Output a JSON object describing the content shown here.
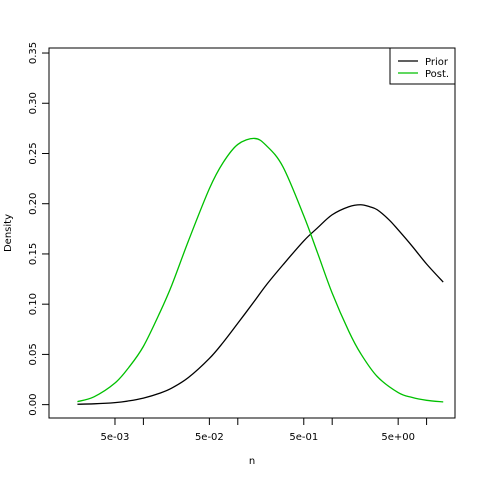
{
  "chart_data": {
    "type": "line",
    "title": "",
    "xlabel": "n",
    "ylabel": "Density",
    "x_scale": "log10",
    "x_range": [
      0.001,
      20
    ],
    "ylim": [
      0,
      0.35
    ],
    "x_ticks": [
      0.005,
      0.05,
      0.5,
      5
    ],
    "x_tick_labels": [
      "5e-03",
      "5e-02",
      "5e-01",
      "5e+00"
    ],
    "x_minor_ticks": [
      0.01,
      0.1,
      1,
      10
    ],
    "y_ticks": [
      0,
      0.05,
      0.1,
      0.15,
      0.2,
      0.25,
      0.3,
      0.35
    ],
    "y_tick_labels": [
      "0.00",
      "0.05",
      "0.10",
      "0.15",
      "0.20",
      "0.25",
      "0.30",
      "0.35"
    ],
    "grid": false,
    "legend_position": "top-right",
    "series": [
      {
        "name": "Prior",
        "color": "#000000",
        "x": [
          0.002,
          0.003,
          0.005,
          0.007,
          0.01,
          0.015,
          0.02,
          0.03,
          0.05,
          0.07,
          0.1,
          0.15,
          0.2,
          0.3,
          0.5,
          0.7,
          1.0,
          1.5,
          2.0,
          2.5,
          3.0,
          4.0,
          5.0,
          7.0,
          10.0,
          15.0
        ],
        "y": [
          0.0004,
          0.0008,
          0.002,
          0.0037,
          0.0065,
          0.0115,
          0.0165,
          0.027,
          0.046,
          0.062,
          0.081,
          0.103,
          0.119,
          0.139,
          0.163,
          0.176,
          0.189,
          0.197,
          0.199,
          0.197,
          0.194,
          0.184,
          0.174,
          0.158,
          0.14,
          0.122
        ]
      },
      {
        "name": "Post.",
        "color": "#00c000",
        "x": [
          0.002,
          0.003,
          0.005,
          0.007,
          0.01,
          0.015,
          0.02,
          0.03,
          0.05,
          0.07,
          0.1,
          0.15,
          0.2,
          0.3,
          0.5,
          0.7,
          1.0,
          1.5,
          2.0,
          3.0,
          5.0,
          7.0,
          10.0,
          15.0
        ],
        "y": [
          0.003,
          0.0078,
          0.0215,
          0.037,
          0.058,
          0.092,
          0.119,
          0.163,
          0.215,
          0.241,
          0.259,
          0.265,
          0.258,
          0.237,
          0.188,
          0.151,
          0.111,
          0.073,
          0.051,
          0.028,
          0.012,
          0.0072,
          0.0043,
          0.0027
        ]
      }
    ]
  }
}
